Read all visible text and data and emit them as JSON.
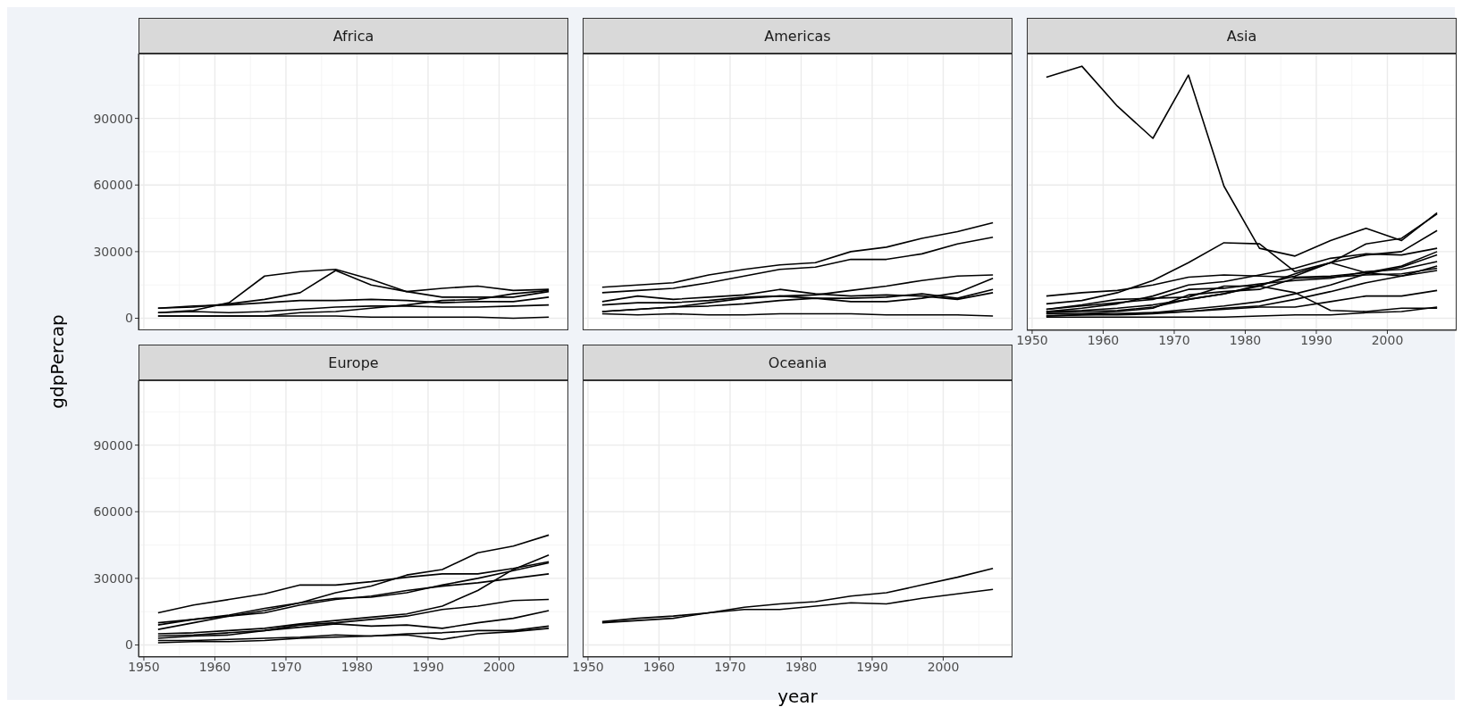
{
  "chart_data": [
    {
      "type": "line",
      "title": "Africa",
      "ylabel": "gdpPercap",
      "x": [
        1952,
        1957,
        1962,
        1967,
        1972,
        1977,
        1982,
        1987,
        1992,
        1997,
        2002,
        2007
      ],
      "xlim": [
        1949.25,
        2009.75
      ],
      "ylim": [
        -5423,
        119187
      ],
      "xticks": [
        1950,
        1960,
        1970,
        1980,
        1990,
        2000
      ],
      "yticks": [
        0,
        30000,
        60000,
        90000
      ],
      "grid": true,
      "tick_labels": "y",
      "series": [
        {
          "color": "#000000",
          "values": [
            2500,
            3500,
            7000,
            19000,
            21000,
            22000,
            17500,
            12000,
            9500,
            9500,
            9500,
            12000
          ]
        },
        {
          "color": "#000000",
          "values": [
            4500,
            5000,
            6500,
            8500,
            11500,
            21500,
            15000,
            12000,
            13500,
            14500,
            12500,
            13000
          ]
        },
        {
          "color": "#000000",
          "values": [
            4500,
            5500,
            6000,
            7000,
            8000,
            8000,
            8500,
            8000,
            7000,
            7500,
            7500,
            9500
          ]
        },
        {
          "color": "#000000",
          "values": [
            1000,
            1000,
            1000,
            1000,
            2500,
            3000,
            4500,
            6000,
            8000,
            8500,
            11000,
            12500
          ]
        },
        {
          "color": "#000000",
          "values": [
            2500,
            3000,
            2500,
            3000,
            4000,
            5000,
            5500,
            5500,
            5000,
            5000,
            5500,
            6000
          ]
        },
        {
          "color": "#000000",
          "values": [
            1000,
            1000,
            1000,
            1000,
            1000,
            1000,
            500,
            500,
            500,
            500,
            0,
            500
          ]
        }
      ]
    },
    {
      "type": "line",
      "title": "Americas",
      "x": [
        1952,
        1957,
        1962,
        1967,
        1972,
        1977,
        1982,
        1987,
        1992,
        1997,
        2002,
        2007
      ],
      "xlim": [
        1949.25,
        2009.75
      ],
      "ylim": [
        -5423,
        119187
      ],
      "xticks": [
        1950,
        1960,
        1970,
        1980,
        1990,
        2000
      ],
      "yticks": [
        0,
        30000,
        60000,
        90000
      ],
      "grid": true,
      "tick_labels": false,
      "series": [
        {
          "color": "#000000",
          "values": [
            14000,
            15000,
            16000,
            19500,
            22000,
            24000,
            25000,
            30000,
            32000,
            36000,
            39000,
            43000
          ]
        },
        {
          "color": "#000000",
          "values": [
            11500,
            12500,
            13500,
            16000,
            19000,
            22000,
            23000,
            26500,
            26500,
            29000,
            33500,
            36500
          ]
        },
        {
          "color": "#000000",
          "values": [
            3000,
            4000,
            5000,
            7000,
            9000,
            10000,
            10500,
            12500,
            14500,
            17000,
            19000,
            19500
          ]
        },
        {
          "color": "#000000",
          "values": [
            7500,
            10000,
            8500,
            9500,
            10500,
            13000,
            11000,
            10000,
            10500,
            10000,
            8500,
            11500
          ]
        },
        {
          "color": "#000000",
          "values": [
            3000,
            4000,
            5000,
            5500,
            6500,
            8000,
            9000,
            7500,
            7500,
            9000,
            11500,
            18000
          ]
        },
        {
          "color": "#000000",
          "values": [
            6000,
            7000,
            7000,
            8000,
            9500,
            10000,
            9000,
            9000,
            9500,
            11000,
            9000,
            13000
          ]
        },
        {
          "color": "#000000",
          "values": [
            2000,
            1500,
            2000,
            1500,
            1500,
            2000,
            2000,
            2000,
            1500,
            1500,
            1500,
            1000
          ]
        }
      ]
    },
    {
      "type": "line",
      "title": "Asia",
      "x": [
        1952,
        1957,
        1962,
        1967,
        1972,
        1977,
        1982,
        1987,
        1992,
        1997,
        2002,
        2007
      ],
      "xlim": [
        1949.25,
        2009.75
      ],
      "ylim": [
        -5423,
        119187
      ],
      "xticks": [
        1950,
        1960,
        1970,
        1980,
        1990,
        2000
      ],
      "yticks": [
        0,
        30000,
        60000,
        90000
      ],
      "grid": true,
      "tick_labels": "x",
      "series": [
        {
          "color": "#000000",
          "values": [
            108500,
            113500,
            95500,
            81000,
            109500,
            59500,
            31500,
            28000,
            35000,
            40500,
            35000,
            47500
          ]
        },
        {
          "color": "#000000",
          "values": [
            2500,
            3000,
            3500,
            5000,
            8500,
            11000,
            15000,
            19000,
            25000,
            33500,
            36000,
            47000
          ]
        },
        {
          "color": "#000000",
          "values": [
            3000,
            4500,
            6500,
            10000,
            15000,
            16500,
            19500,
            22500,
            27000,
            29000,
            28500,
            31500
          ]
        },
        {
          "color": "#000000",
          "values": [
            3000,
            3500,
            4500,
            6000,
            8500,
            11000,
            14500,
            20000,
            25000,
            28500,
            30000,
            39500
          ]
        },
        {
          "color": "#000000",
          "values": [
            6500,
            8000,
            11500,
            17000,
            25000,
            34000,
            33500,
            21000,
            25000,
            20500,
            19000,
            21500
          ]
        },
        {
          "color": "#000000",
          "values": [
            10000,
            11500,
            12500,
            15000,
            18500,
            19500,
            19000,
            18500,
            19000,
            20500,
            23500,
            30000
          ]
        },
        {
          "color": "#000000",
          "values": [
            1000,
            1500,
            2000,
            2500,
            4000,
            5500,
            7500,
            11000,
            15000,
            20000,
            23000,
            28500
          ]
        },
        {
          "color": "#000000",
          "values": [
            1000,
            1500,
            1500,
            2000,
            3000,
            4500,
            5500,
            8500,
            12000,
            16000,
            19000,
            23500
          ]
        },
        {
          "color": "#000000",
          "values": [
            4000,
            5500,
            7000,
            8500,
            13000,
            13500,
            15500,
            17000,
            18000,
            21000,
            22000,
            25500
          ]
        },
        {
          "color": "#000000",
          "values": [
            2000,
            2000,
            3000,
            4500,
            10500,
            12000,
            13000,
            18000,
            18500,
            19500,
            20000,
            22500
          ]
        },
        {
          "color": "#000000",
          "values": [
            4000,
            6000,
            8500,
            9000,
            9500,
            14500,
            14500,
            11500,
            3500,
            3000,
            4500,
            4500
          ]
        },
        {
          "color": "#000000",
          "values": [
            2000,
            2000,
            2000,
            2500,
            3000,
            4000,
            5000,
            5000,
            7500,
            10000,
            10000,
            12500
          ]
        },
        {
          "color": "#000000",
          "values": [
            500,
            500,
            500,
            500,
            500,
            500,
            1000,
            1500,
            1500,
            2500,
            3000,
            5000
          ]
        }
      ]
    },
    {
      "type": "line",
      "title": "Europe",
      "x": [
        1952,
        1957,
        1962,
        1967,
        1972,
        1977,
        1982,
        1987,
        1992,
        1997,
        2002,
        2007
      ],
      "xlim": [
        1949.25,
        2009.75
      ],
      "ylim": [
        -5423,
        119187
      ],
      "xticks": [
        1950,
        1960,
        1970,
        1980,
        1990,
        2000
      ],
      "yticks": [
        0,
        30000,
        60000,
        90000
      ],
      "grid": true,
      "series": [
        {
          "color": "#000000",
          "values": [
            14500,
            18000,
            20500,
            23000,
            27000,
            27000,
            28500,
            30500,
            32000,
            32000,
            34500,
            37500
          ]
        },
        {
          "color": "#000000",
          "values": [
            10000,
            11500,
            13500,
            16500,
            19000,
            23500,
            26500,
            31500,
            34000,
            41500,
            44500,
            49500
          ]
        },
        {
          "color": "#000000",
          "values": [
            5000,
            5500,
            6500,
            7500,
            9500,
            11000,
            12500,
            14000,
            17500,
            24500,
            34000,
            40500
          ]
        },
        {
          "color": "#000000",
          "values": [
            9000,
            11500,
            13000,
            15500,
            19000,
            21000,
            21500,
            23500,
            27000,
            30000,
            33500,
            37000
          ]
        },
        {
          "color": "#000000",
          "values": [
            7000,
            10000,
            13000,
            14500,
            18000,
            20500,
            22000,
            24500,
            26500,
            28000,
            30000,
            32000
          ]
        },
        {
          "color": "#000000",
          "values": [
            3000,
            4000,
            4500,
            6500,
            9000,
            10000,
            11500,
            13000,
            16000,
            17500,
            20000,
            20500
          ]
        },
        {
          "color": "#000000",
          "values": [
            4000,
            4500,
            5500,
            6500,
            8000,
            9500,
            8500,
            9000,
            7500,
            10000,
            12000,
            15500
          ]
        },
        {
          "color": "#000000",
          "values": [
            2000,
            2000,
            2500,
            3000,
            3500,
            4500,
            4000,
            5000,
            5500,
            6500,
            6500,
            8500
          ]
        },
        {
          "color": "#000000",
          "values": [
            1000,
            1500,
            1500,
            2000,
            3000,
            3500,
            4000,
            4500,
            2500,
            5000,
            6000,
            7500
          ]
        }
      ]
    },
    {
      "type": "line",
      "title": "Oceania",
      "xlabel": "year",
      "x": [
        1952,
        1957,
        1962,
        1967,
        1972,
        1977,
        1982,
        1987,
        1992,
        1997,
        2002,
        2007
      ],
      "xlim": [
        1949.25,
        2009.75
      ],
      "ylim": [
        -5423,
        119187
      ],
      "xticks": [
        1950,
        1960,
        1970,
        1980,
        1990,
        2000
      ],
      "yticks": [
        0,
        30000,
        60000,
        90000
      ],
      "grid": true,
      "tick_labels": "x",
      "series": [
        {
          "color": "#000000",
          "values": [
            10000,
            11000,
            12000,
            14500,
            17000,
            18500,
            19500,
            22000,
            23500,
            27000,
            30500,
            34500
          ]
        },
        {
          "color": "#000000",
          "values": [
            10500,
            12000,
            13000,
            14500,
            16000,
            16000,
            17500,
            19000,
            18500,
            21000,
            23000,
            25000
          ]
        }
      ]
    }
  ]
}
